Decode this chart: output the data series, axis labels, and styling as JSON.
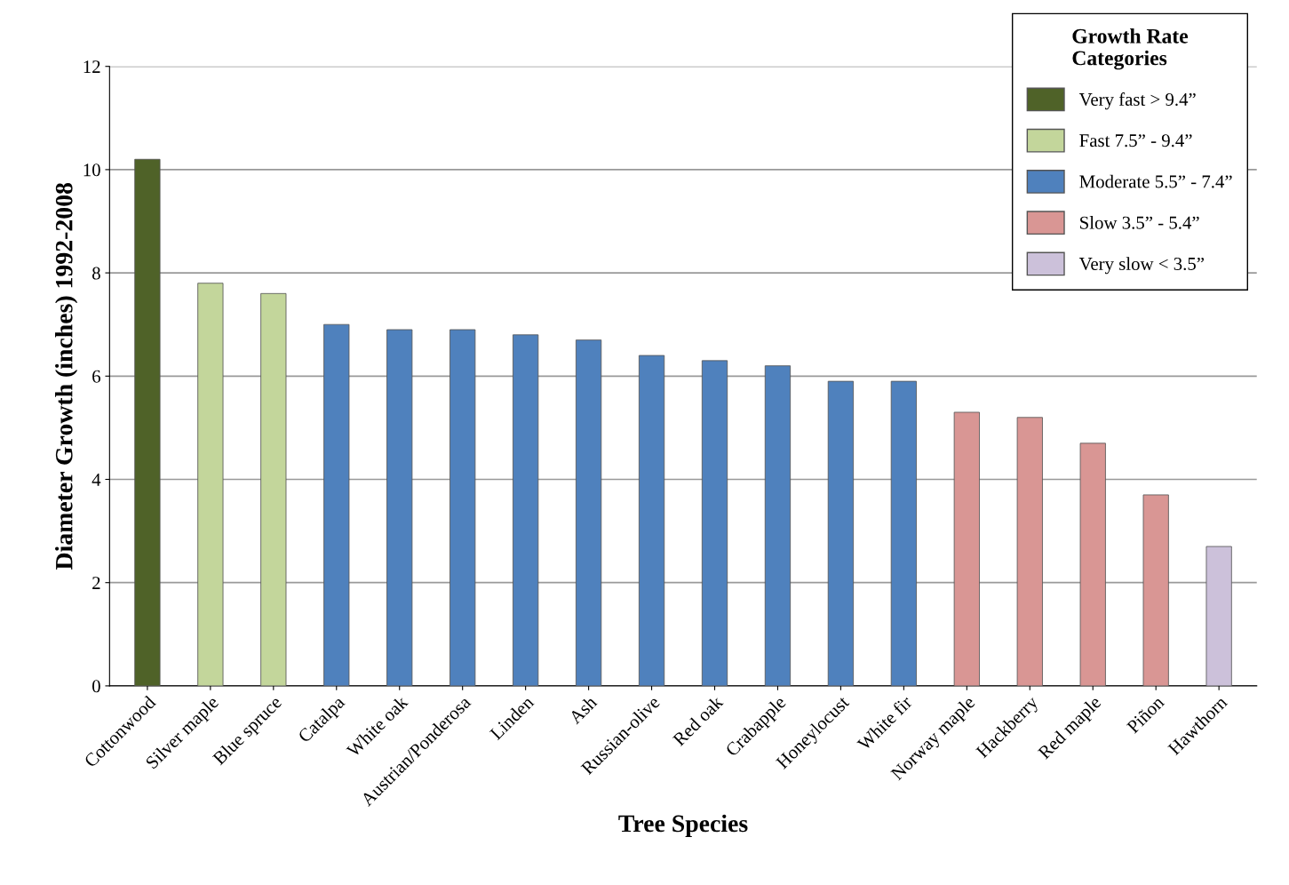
{
  "chart_data": {
    "type": "bar",
    "xlabel": "Tree Species",
    "ylabel": "Diameter Growth (inches) 1992-2008",
    "legend_title": "Growth Rate\nCategories",
    "categories": [
      "Cottonwood",
      "Silver maple",
      "Blue spruce",
      "Catalpa",
      "White oak",
      "Austrian/Ponderosa",
      "Linden",
      "Ash",
      "Russian-olive",
      "Red oak",
      "Crabapple",
      "Honeylocust",
      "White fir",
      "Norway maple",
      "Hackberry",
      "Red maple",
      "Piñon",
      "Hawthorn"
    ],
    "series": [
      {
        "name": "Very fast > 9.4”",
        "color": "#4f6228",
        "values": [
          10.2,
          null,
          null,
          null,
          null,
          null,
          null,
          null,
          null,
          null,
          null,
          null,
          null,
          null,
          null,
          null,
          null,
          null
        ]
      },
      {
        "name": "Fast 7.5” - 9.4”",
        "color": "#c3d69b",
        "values": [
          null,
          7.8,
          7.6,
          null,
          null,
          null,
          null,
          null,
          null,
          null,
          null,
          null,
          null,
          null,
          null,
          null,
          null,
          null
        ]
      },
      {
        "name": "Moderate 5.5” - 7.4”",
        "color": "#4f81bd",
        "values": [
          null,
          null,
          null,
          7.0,
          6.9,
          6.9,
          6.8,
          6.7,
          6.4,
          6.3,
          6.2,
          5.9,
          5.9,
          null,
          null,
          null,
          null,
          null
        ]
      },
      {
        "name": "Slow 3.5” - 5.4”",
        "color": "#d99694",
        "values": [
          null,
          null,
          null,
          null,
          null,
          null,
          null,
          null,
          null,
          null,
          null,
          null,
          null,
          5.3,
          5.2,
          4.7,
          3.7,
          null
        ]
      },
      {
        "name": "Very slow < 3.5”",
        "color": "#ccc1da",
        "values": [
          null,
          null,
          null,
          null,
          null,
          null,
          null,
          null,
          null,
          null,
          null,
          null,
          null,
          null,
          null,
          null,
          null,
          2.7
        ]
      }
    ],
    "ylim": [
      0,
      12
    ],
    "yticks": [
      0,
      2,
      4,
      6,
      8,
      10,
      12
    ],
    "grid": "y",
    "legend": "top right"
  }
}
